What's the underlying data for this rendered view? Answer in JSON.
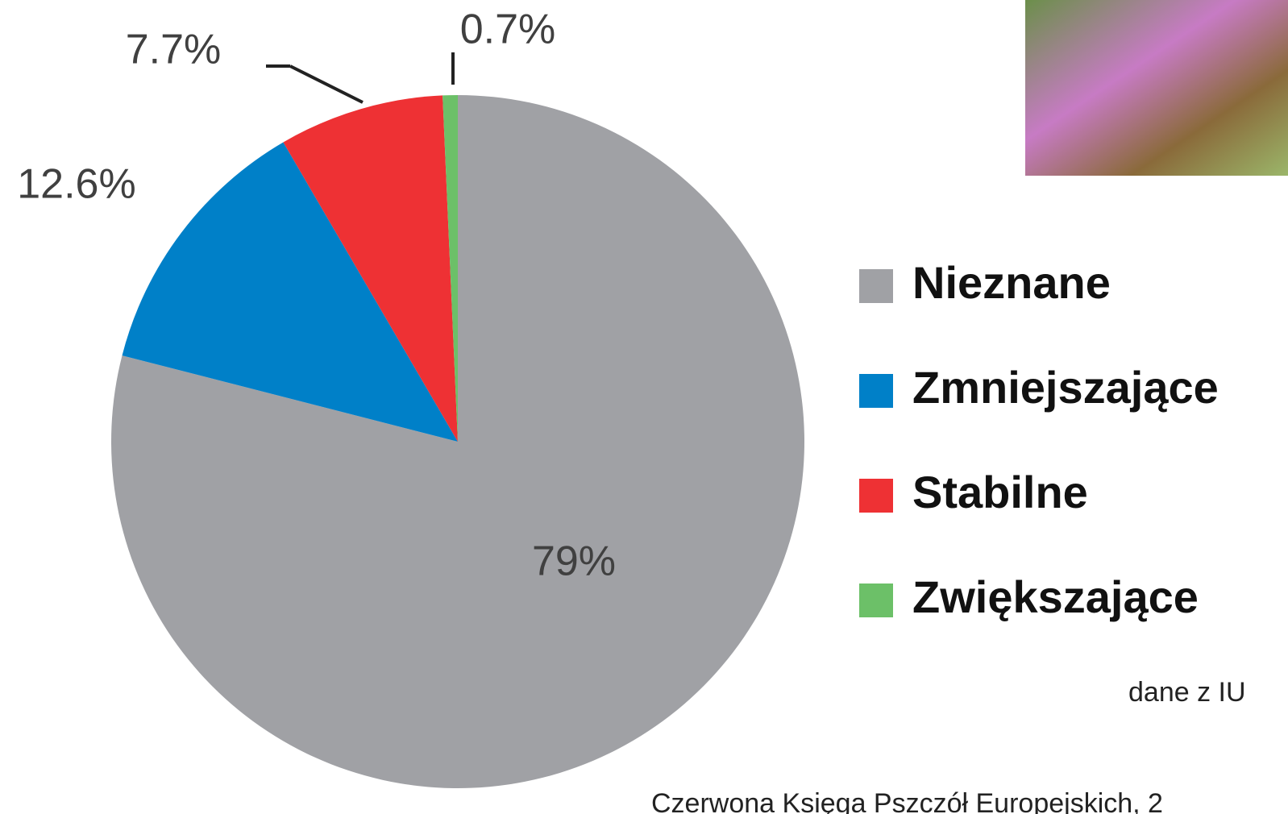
{
  "chart_data": {
    "type": "pie",
    "categories": [
      "Nieznane",
      "Zmniejszające",
      "Stabilne",
      "Zwiększające"
    ],
    "values": [
      79,
      12.6,
      7.7,
      0.7
    ],
    "value_labels": [
      "79%",
      "12.6%",
      "7.7%",
      "0.7%"
    ],
    "colors": [
      "#a0a1a5",
      "#0080c8",
      "#ee3134",
      "#6cc068"
    ],
    "source": [
      "dane z IU",
      "Czerwona Księga Pszczół Europejskich, 2"
    ]
  }
}
